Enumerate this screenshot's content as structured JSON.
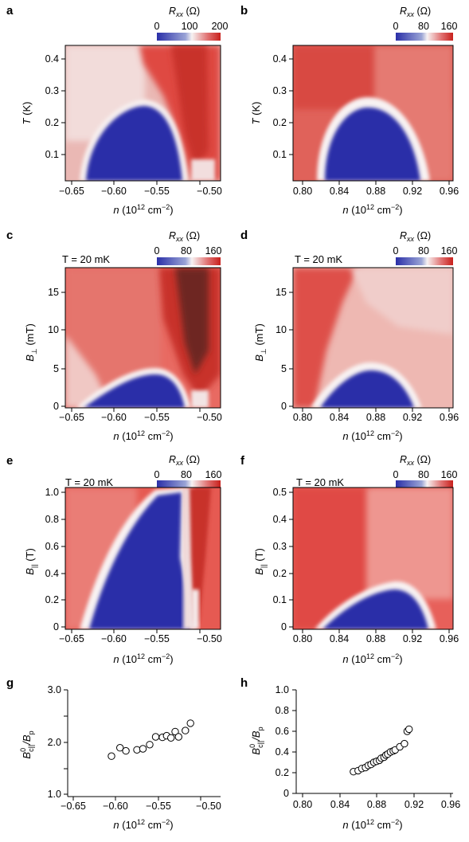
{
  "panels": {
    "a": {
      "letter": "a",
      "cb_title": "R",
      "cb_sub": "xx",
      "cb_unit": " (Ω)",
      "cb_ticks": [
        "0",
        "100",
        "200"
      ],
      "ylabel_main": "T",
      "ylabel_unit": " (K)",
      "xlabel_main": "n",
      "xlabel_unit": " (10",
      "xlabel_exp": "12",
      "xlabel_tail": " cm",
      "xlabel_exp2": "−2",
      "xlabel_close": ")",
      "xticks": [
        "−0.65",
        "−0.60",
        "−0.55",
        "−0.50"
      ],
      "yticks": [
        "0.1",
        "0.2",
        "0.3",
        "0.4"
      ]
    },
    "b": {
      "letter": "b",
      "cb_title": "R",
      "cb_sub": "xx",
      "cb_unit": " (Ω)",
      "cb_ticks": [
        "0",
        "80",
        "160"
      ],
      "ylabel_main": "T",
      "ylabel_unit": " (K)",
      "xlabel_main": "n",
      "xlabel_unit": " (10",
      "xlabel_exp": "12",
      "xlabel_tail": " cm",
      "xlabel_exp2": "−2",
      "xlabel_close": ")",
      "xticks": [
        "0.80",
        "0.84",
        "0.88",
        "0.92",
        "0.96"
      ],
      "yticks": [
        "0.1",
        "0.2",
        "0.3",
        "0.4"
      ]
    },
    "c": {
      "letter": "c",
      "annotation": "T = 20 mK",
      "cb_title": "R",
      "cb_sub": "xx",
      "cb_unit": " (Ω)",
      "cb_ticks": [
        "0",
        "80",
        "160"
      ],
      "ylabel_main": "B",
      "ylabel_sub": "⊥",
      "ylabel_unit": " (mT)",
      "xlabel_main": "n",
      "xlabel_unit": " (10",
      "xlabel_exp": "12",
      "xlabel_tail": " cm",
      "xlabel_exp2": "−2",
      "xlabel_close": ")",
      "xticks": [
        "−0.65",
        "−0.60",
        "−0.55",
        "−0.50"
      ],
      "yticks": [
        "0",
        "5",
        "10",
        "15"
      ]
    },
    "d": {
      "letter": "d",
      "annotation": "T = 20 mK",
      "cb_title": "R",
      "cb_sub": "xx",
      "cb_unit": " (Ω)",
      "cb_ticks": [
        "0",
        "80",
        "160"
      ],
      "ylabel_main": "B",
      "ylabel_sub": "⊥",
      "ylabel_unit": " (mT)",
      "xlabel_main": "n",
      "xlabel_unit": " (10",
      "xlabel_exp": "12",
      "xlabel_tail": " cm",
      "xlabel_exp2": "−2",
      "xlabel_close": ")",
      "xticks": [
        "0.80",
        "0.84",
        "0.88",
        "0.92",
        "0.96"
      ],
      "yticks": [
        "0",
        "5",
        "10",
        "15"
      ]
    },
    "e": {
      "letter": "e",
      "annotation": "T = 20 mK",
      "cb_title": "R",
      "cb_sub": "xx",
      "cb_unit": " (Ω)",
      "cb_ticks": [
        "0",
        "80",
        "160"
      ],
      "ylabel_main": "B",
      "ylabel_sub": "||",
      "ylabel_unit": " (T)",
      "xlabel_main": "n",
      "xlabel_unit": " (10",
      "xlabel_exp": "12",
      "xlabel_tail": " cm",
      "xlabel_exp2": "−2",
      "xlabel_close": ")",
      "xticks": [
        "−0.65",
        "−0.60",
        "−0.55",
        "−0.50"
      ],
      "yticks": [
        "0",
        "0.2",
        "0.4",
        "0.6",
        "0.8",
        "1.0"
      ]
    },
    "f": {
      "letter": "f",
      "annotation": "T = 20 mK",
      "cb_title": "R",
      "cb_sub": "xx",
      "cb_unit": " (Ω)",
      "cb_ticks": [
        "0",
        "80",
        "160"
      ],
      "ylabel_main": "B",
      "ylabel_sub": "||",
      "ylabel_unit": " (T)",
      "xlabel_main": "n",
      "xlabel_unit": " (10",
      "xlabel_exp": "12",
      "xlabel_tail": " cm",
      "xlabel_exp2": "−2",
      "xlabel_close": ")",
      "xticks": [
        "0.80",
        "0.84",
        "0.88",
        "0.92",
        "0.96"
      ],
      "yticks": [
        "0",
        "0.1",
        "0.2",
        "0.3",
        "0.4",
        "0.5"
      ]
    },
    "g": {
      "letter": "g",
      "ylabel_main": "B",
      "ylabel_sup": "0",
      "ylabel_sub": "c||",
      "ylabel_tail": "/B",
      "ylabel_sub2": "p",
      "xlabel_main": "n",
      "xlabel_unit": " (10",
      "xlabel_exp": "12",
      "xlabel_tail": " cm",
      "xlabel_exp2": "−2",
      "xlabel_close": ")",
      "xticks": [
        "−0.65",
        "−0.60",
        "−0.55",
        "−0.50"
      ],
      "yticks": [
        "1.0",
        "2.0",
        "3.0"
      ]
    },
    "h": {
      "letter": "h",
      "ylabel_main": "B",
      "ylabel_sup": "0",
      "ylabel_sub": "c||",
      "ylabel_tail": "/B",
      "ylabel_sub2": "p",
      "xlabel_main": "n",
      "xlabel_unit": " (10",
      "xlabel_exp": "12",
      "xlabel_tail": " cm",
      "xlabel_exp2": "−2",
      "xlabel_close": ")",
      "xticks": [
        "0.80",
        "0.84",
        "0.88",
        "0.92",
        "0.96"
      ],
      "yticks": [
        "0",
        "0.2",
        "0.4",
        "0.6",
        "0.8",
        "1.0"
      ]
    }
  },
  "colors": {
    "low": "#2a2fa8",
    "mid": "#f4eeee",
    "high": "#d8302a",
    "max": "#5a1f1a"
  },
  "chart_data": [
    {
      "panel": "a",
      "type": "heatmap",
      "x_range": [
        -0.66,
        -0.48
      ],
      "y_range": [
        0.02,
        0.46
      ],
      "zlim": [
        0,
        200
      ],
      "description_region": "superconducting dome centered near n=-0.57, T up to 0.27 K"
    },
    {
      "panel": "b",
      "type": "heatmap",
      "x_range": [
        0.8,
        0.96
      ],
      "y_range": [
        0.02,
        0.46
      ],
      "zlim": [
        0,
        160
      ]
    },
    {
      "panel": "c",
      "type": "heatmap",
      "x_range": [
        -0.66,
        -0.48
      ],
      "y_range": [
        0,
        18
      ],
      "zlim": [
        0,
        160
      ]
    },
    {
      "panel": "d",
      "type": "heatmap",
      "x_range": [
        0.8,
        0.96
      ],
      "y_range": [
        0,
        18
      ],
      "zlim": [
        0,
        160
      ]
    },
    {
      "panel": "e",
      "type": "heatmap",
      "x_range": [
        -0.66,
        -0.48
      ],
      "y_range": [
        0,
        1.0
      ],
      "zlim": [
        0,
        160
      ]
    },
    {
      "panel": "f",
      "type": "heatmap",
      "x_range": [
        0.8,
        0.96
      ],
      "y_range": [
        0,
        0.52
      ],
      "zlim": [
        0,
        160
      ]
    },
    {
      "panel": "g",
      "type": "scatter",
      "x": [
        -0.605,
        -0.595,
        -0.588,
        -0.575,
        -0.568,
        -0.56,
        -0.553,
        -0.545,
        -0.54,
        -0.535,
        -0.53,
        -0.526,
        -0.518,
        -0.512
      ],
      "y": [
        1.73,
        1.89,
        1.83,
        1.85,
        1.87,
        1.95,
        2.1,
        2.09,
        2.12,
        2.08,
        2.2,
        2.1,
        2.22,
        2.36
      ],
      "xlim": [
        -0.65,
        -0.48
      ],
      "ylim": [
        1.0,
        3.0
      ]
    },
    {
      "panel": "h",
      "type": "scatter",
      "x": [
        0.855,
        0.86,
        0.864,
        0.868,
        0.871,
        0.874,
        0.877,
        0.88,
        0.883,
        0.885,
        0.888,
        0.89,
        0.892,
        0.895,
        0.898,
        0.9,
        0.905,
        0.91,
        0.913,
        0.915
      ],
      "y": [
        0.21,
        0.22,
        0.24,
        0.25,
        0.27,
        0.28,
        0.3,
        0.31,
        0.32,
        0.34,
        0.35,
        0.37,
        0.38,
        0.4,
        0.41,
        0.42,
        0.45,
        0.48,
        0.6,
        0.62
      ],
      "xlim": [
        0.8,
        0.96
      ],
      "ylim": [
        0,
        1.0
      ]
    }
  ]
}
